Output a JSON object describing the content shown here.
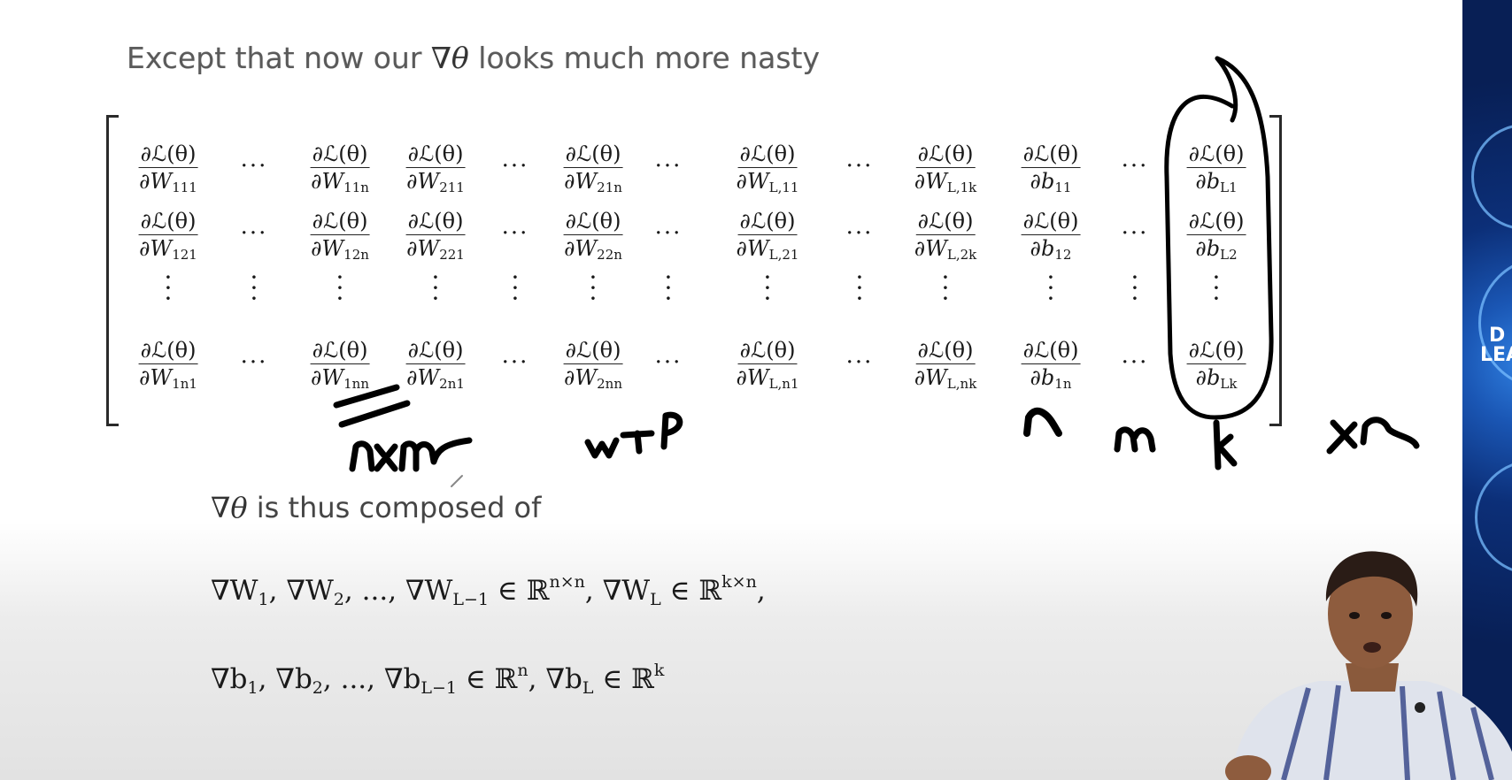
{
  "slide": {
    "title_prefix": "Except that now our ",
    "title_symbol": "∇θ",
    "title_suffix": " looks much more nasty",
    "caption_symbol": "∇θ",
    "caption_text": " is thus composed of",
    "eq1": {
      "a": "∇W",
      "a_sub": "1",
      "sep1": ", ∇W",
      "b_sub": "2",
      "sep2": ", ..., ∇W",
      "c_sub": "L−1",
      "in1": " ∈ ℝ",
      "sup1": "n×n",
      "sep3": ", ∇W",
      "d_sub": "L",
      "in2": " ∈ ℝ",
      "sup2": "k×n",
      "end": ","
    },
    "eq2": {
      "a": "∇b",
      "a_sub": "1",
      "sep1": ", ∇b",
      "b_sub": "2",
      "sep2": ", ..., ∇b",
      "c_sub": "L−1",
      "in1": " ∈ ℝ",
      "sup1": "n",
      "sep3": ", ∇b",
      "d_sub": "L",
      "in2": " ∈ ℝ",
      "sup2": "k"
    }
  },
  "matrix": {
    "numerator": "∂ℒ(θ)",
    "hdots": "···",
    "columns": [
      {
        "kind": "frac",
        "var": "W",
        "subs": [
          "111",
          "121",
          "1n1"
        ]
      },
      {
        "kind": "hdots"
      },
      {
        "kind": "frac",
        "var": "W",
        "subs": [
          "11n",
          "12n",
          "1nn"
        ]
      },
      {
        "kind": "frac",
        "var": "W",
        "subs": [
          "211",
          "221",
          "2n1"
        ]
      },
      {
        "kind": "hdots"
      },
      {
        "kind": "frac",
        "var": "W",
        "subs": [
          "21n",
          "22n",
          "2nn"
        ]
      },
      {
        "kind": "hdots"
      },
      {
        "kind": "frac",
        "var": "W",
        "subs": [
          "L,11",
          "L,21",
          "L,n1"
        ]
      },
      {
        "kind": "hdots"
      },
      {
        "kind": "frac",
        "var": "W",
        "subs": [
          "L,1k",
          "L,2k",
          "L,nk"
        ]
      },
      {
        "kind": "frac",
        "var": "b",
        "subs": [
          "11",
          "12",
          "1n"
        ]
      },
      {
        "kind": "hdots"
      },
      {
        "kind": "frac",
        "var": "b",
        "subs": [
          "L1",
          "L2",
          "Lk"
        ]
      }
    ]
  },
  "annotations": {
    "handwritten": [
      "n×m",
      "n",
      "m",
      "k",
      "×n"
    ]
  },
  "banner": {
    "line1": "D",
    "line2": "LEA"
  },
  "colors": {
    "banner_blue": "#0c2f78",
    "ink": "#000000"
  }
}
